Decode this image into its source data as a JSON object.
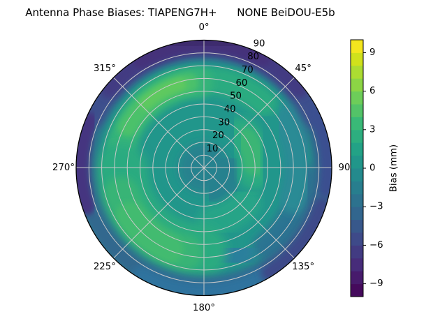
{
  "figure": {
    "title": "Antenna Phase Biases: TIAPENG7H+      NONE BeiDOU-E5b"
  },
  "polar": {
    "theta_ticks": [
      {
        "label": "0°",
        "angle": 0
      },
      {
        "label": "45°",
        "angle": 45
      },
      {
        "label": "90",
        "angle": 90
      },
      {
        "label": "135°",
        "angle": 135
      },
      {
        "label": "180°",
        "angle": 180
      },
      {
        "label": "225°",
        "angle": 225
      },
      {
        "label": "270°",
        "angle": 270
      },
      {
        "label": "315°",
        "angle": 315
      }
    ],
    "r_ticks": [
      "10",
      "20",
      "30",
      "40",
      "50",
      "60",
      "70",
      "80",
      "90"
    ]
  },
  "colorbar": {
    "label": "Bias (mm)",
    "range": [
      -10,
      10
    ],
    "ticks": [
      {
        "v": 9,
        "label": "9"
      },
      {
        "v": 6,
        "label": "6"
      },
      {
        "v": 3,
        "label": "3"
      },
      {
        "v": 0,
        "label": "0"
      },
      {
        "v": -3,
        "label": "−3"
      },
      {
        "v": -6,
        "label": "−6"
      },
      {
        "v": -9,
        "label": "−9"
      }
    ],
    "colors_bottom_to_top": [
      "#450a5c",
      "#471b6c",
      "#472c7a",
      "#423b82",
      "#3e4a89",
      "#38588b",
      "#32668e",
      "#2d728e",
      "#287e8e",
      "#248a8d",
      "#21968a",
      "#23a286",
      "#2dae7f",
      "#39b977",
      "#53c368",
      "#6dcd59",
      "#8cd545",
      "#acdc32",
      "#d0e11c",
      "#f4e61e"
    ]
  },
  "chart_data": {
    "type": "heatmap",
    "projection": "polar",
    "title": "Antenna Phase Biases: TIAPENG7H+      NONE BeiDOU-E5b",
    "antenna": "TIAPENG7H+",
    "radome": "NONE",
    "signal": "BeiDOU-E5b",
    "angular_axis": {
      "unit": "degrees",
      "zero_location": "N",
      "direction": "clockwise",
      "ticks": [
        0,
        45,
        90,
        135,
        180,
        225,
        270,
        315
      ]
    },
    "radial_axis": {
      "ticks": [
        10,
        20,
        30,
        40,
        50,
        60,
        70,
        80,
        90
      ],
      "range": [
        0,
        100
      ],
      "tick_label_azimuth_deg": 24
    },
    "color_axis": {
      "label": "Bias (mm)",
      "range": [
        -10,
        10
      ],
      "ticks": [
        -9,
        -6,
        -3,
        0,
        3,
        6,
        9
      ],
      "colormap": "viridis",
      "n_levels": 20
    },
    "base": {
      "color": "#21968b",
      "bias_mm": 0.5
    },
    "field_regions": [
      {
        "shape": "disc",
        "r": [
          0,
          20
        ],
        "bias_mm": -1.5,
        "color": "#26828e",
        "blur": 6
      },
      {
        "shape": "arc",
        "az": [
          95,
          150
        ],
        "r": [
          8,
          32
        ],
        "bias_mm": -1.5,
        "color": "#27818e",
        "blur": 5
      },
      {
        "shape": "arc",
        "az": [
          95,
          142
        ],
        "r": [
          68,
          88
        ],
        "bias_mm": -2.5,
        "color": "#2b7392",
        "blur": 6
      },
      {
        "shape": "arc",
        "az": [
          158,
          186
        ],
        "r": [
          58,
          84
        ],
        "bias_mm": -2,
        "color": "#2c7f9c",
        "blur": 6
      },
      {
        "shape": "arc",
        "az": [
          60,
          108
        ],
        "r": [
          62,
          88
        ],
        "bias_mm": -1,
        "color": "#2b8b95",
        "blur": 6
      },
      {
        "shape": "arc",
        "az": [
          130,
          170
        ],
        "r": [
          30,
          55
        ],
        "bias_mm": 0.8,
        "color": "#28a487",
        "blur": 6
      },
      {
        "shape": "arc",
        "az": [
          322,
          42
        ],
        "r": [
          58,
          80
        ],
        "bias_mm": 1.5,
        "color": "#2cab80",
        "blur": 6
      },
      {
        "shape": "arc",
        "az": [
          286,
          356
        ],
        "r": [
          55,
          79
        ],
        "bias_mm": 2,
        "color": "#35b479",
        "blur": 5
      },
      {
        "shape": "arc",
        "az": [
          298,
          350
        ],
        "r": [
          60,
          75
        ],
        "bias_mm": 3,
        "color": "#4cc16b",
        "blur": 4
      },
      {
        "shape": "arc",
        "az": [
          318,
          344
        ],
        "r": [
          63,
          73
        ],
        "bias_mm": 3.5,
        "color": "#5ec95f",
        "blur": 4
      },
      {
        "shape": "arc",
        "az": [
          183,
          268
        ],
        "r": [
          44,
          87
        ],
        "bias_mm": 1.5,
        "color": "#2cab80",
        "blur": 7
      },
      {
        "shape": "arc",
        "az": [
          193,
          252
        ],
        "r": [
          54,
          82
        ],
        "bias_mm": 2,
        "color": "#38b476",
        "blur": 5
      },
      {
        "shape": "arc",
        "az": [
          203,
          237
        ],
        "r": [
          58,
          80
        ],
        "bias_mm": 2.5,
        "color": "#42bb70",
        "blur": 4
      },
      {
        "shape": "arc",
        "az": [
          48,
          96
        ],
        "r": [
          27,
          53
        ],
        "bias_mm": 1.5,
        "color": "#2baa81",
        "blur": 6
      },
      {
        "shape": "arc",
        "az": [
          56,
          86
        ],
        "r": [
          31,
          49
        ],
        "bias_mm": 2,
        "color": "#3bb575",
        "blur": 4
      },
      {
        "shape": "ring",
        "r": [
          85,
          103
        ],
        "bias_mm": -4,
        "color": "#31688e",
        "blur": 6
      },
      {
        "shape": "arc",
        "az": [
          150,
          210
        ],
        "r": [
          90,
          104
        ],
        "bias_mm": -3,
        "color": "#2e739f",
        "blur": 6
      },
      {
        "shape": "arc",
        "az": [
          295,
          65
        ],
        "r": [
          87,
          104
        ],
        "bias_mm": -5,
        "color": "#3c508d",
        "blur": 5
      },
      {
        "shape": "arc",
        "az": [
          310,
          50
        ],
        "r": [
          89,
          104
        ],
        "bias_mm": -6.5,
        "color": "#423b82",
        "blur": 5
      },
      {
        "shape": "arc",
        "az": [
          252,
          292
        ],
        "r": [
          90,
          104
        ],
        "bias_mm": -6.5,
        "color": "#443580",
        "blur": 4
      },
      {
        "shape": "arc",
        "az": [
          64,
          100
        ],
        "r": [
          91,
          104
        ],
        "bias_mm": -5.5,
        "color": "#3b4f90",
        "blur": 4
      },
      {
        "shape": "arc",
        "az": [
          108,
          148
        ],
        "r": [
          90,
          104
        ],
        "bias_mm": -6,
        "color": "#3e4a89",
        "blur": 5
      },
      {
        "shape": "arc",
        "az": [
          330,
          28
        ],
        "r": [
          91,
          105
        ],
        "bias_mm": -8,
        "color": "#45307a",
        "blur": 4
      },
      {
        "shape": "arc",
        "az": [
          347,
          13
        ],
        "r": [
          94,
          105
        ],
        "bias_mm": -9,
        "color": "#3c2b6d",
        "blur": 4
      }
    ]
  }
}
